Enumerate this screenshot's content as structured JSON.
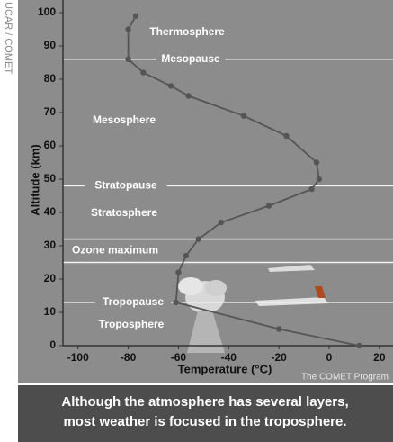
{
  "chart_data": {
    "type": "line",
    "x": [
      12,
      -20,
      -61,
      -60,
      -57,
      -52,
      -43,
      -24,
      -7,
      -4,
      -5,
      -17,
      -34,
      -56,
      -63,
      -74,
      -80,
      -80,
      -77
    ],
    "values": [
      0,
      5,
      13,
      22,
      27,
      32,
      37,
      42,
      47,
      50,
      55,
      63,
      69,
      75,
      78,
      82,
      86,
      95,
      99
    ],
    "color": "#555555",
    "xlabel": "Temperature (°C)",
    "ylabel": "Altitude (km)",
    "xlim": [
      -106,
      24
    ],
    "xticks": [
      -100,
      -80,
      -60,
      -40,
      -20,
      0,
      20
    ],
    "ylim": [
      0,
      100
    ],
    "yticks": [
      0,
      10,
      20,
      30,
      40,
      50,
      60,
      70,
      80,
      90,
      100
    ],
    "reference_lines": [
      {
        "label": "Mesopause",
        "value": 86
      },
      {
        "label": "Stratopause",
        "value": 48
      },
      {
        "label": "Tropopause",
        "value": 13
      }
    ],
    "bands": [
      {
        "label": "Ozone maximum",
        "range": [
          25,
          32
        ]
      }
    ],
    "region_labels": [
      "Thermosphere",
      "Mesosphere",
      "Stratosphere",
      "Troposphere"
    ],
    "credit": "The COMET Program"
  },
  "source": "UCAR / COMET",
  "caption": [
    "Although the atmosphere has several layers,",
    "most weather is focused in the troposphere."
  ]
}
